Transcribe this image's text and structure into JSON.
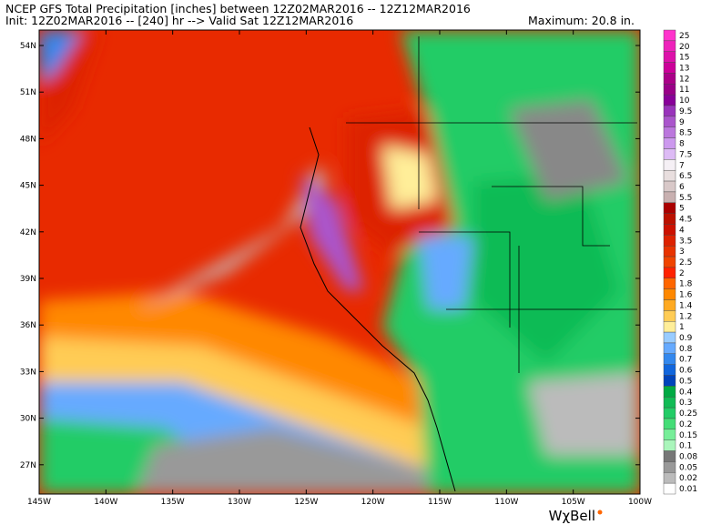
{
  "header": {
    "line1": "NCEP GFS Total Precipitation [inches] between 12Z02MAR2016 -- 12Z12MAR2016",
    "line2": "Init: 12Z02MAR2016 -- [240] hr --> Valid Sat 12Z12MAR2016",
    "maximum": "Maximum: 20.8 in."
  },
  "latitude_labels": [
    "54N",
    "51N",
    "48N",
    "45N",
    "42N",
    "39N",
    "36N",
    "33N",
    "30N",
    "27N"
  ],
  "longitude_labels": [
    "145W",
    "140W",
    "135W",
    "130W",
    "125W",
    "120W",
    "115W",
    "110W",
    "105W",
    "100W"
  ],
  "colorbar": [
    {
      "label": "25",
      "color": "#ff33cc"
    },
    {
      "label": "20",
      "color": "#ee22bb"
    },
    {
      "label": "15",
      "color": "#dd11aa"
    },
    {
      "label": "13",
      "color": "#cc0099"
    },
    {
      "label": "12",
      "color": "#aa0088"
    },
    {
      "label": "11",
      "color": "#990088"
    },
    {
      "label": "10",
      "color": "#880099"
    },
    {
      "label": "9.5",
      "color": "#9933bb"
    },
    {
      "label": "9",
      "color": "#aa55cc"
    },
    {
      "label": "8.5",
      "color": "#bb77dd"
    },
    {
      "label": "8",
      "color": "#cc99ee"
    },
    {
      "label": "7.5",
      "color": "#ddbbf5"
    },
    {
      "label": "7",
      "color": "#f5f0f5"
    },
    {
      "label": "6.5",
      "color": "#e8dede"
    },
    {
      "label": "6",
      "color": "#d8c8c8"
    },
    {
      "label": "5.5",
      "color": "#c8b0b0"
    },
    {
      "label": "5",
      "color": "#aa0000"
    },
    {
      "label": "4.5",
      "color": "#bb1100"
    },
    {
      "label": "4",
      "color": "#cc1100"
    },
    {
      "label": "3.5",
      "color": "#dd2200"
    },
    {
      "label": "3",
      "color": "#e83300"
    },
    {
      "label": "2.5",
      "color": "#f04400"
    },
    {
      "label": "2",
      "color": "#ff2200"
    },
    {
      "label": "1.8",
      "color": "#ff6600"
    },
    {
      "label": "1.6",
      "color": "#ff8800"
    },
    {
      "label": "1.4",
      "color": "#ffaa22"
    },
    {
      "label": "1.2",
      "color": "#ffcc55"
    },
    {
      "label": "1",
      "color": "#ffee99"
    },
    {
      "label": "0.9",
      "color": "#99ccff"
    },
    {
      "label": "0.8",
      "color": "#66aaff"
    },
    {
      "label": "0.7",
      "color": "#3388ee"
    },
    {
      "label": "0.6",
      "color": "#1166dd"
    },
    {
      "label": "0.5",
      "color": "#0044bb"
    },
    {
      "label": "0.4",
      "color": "#00aa44"
    },
    {
      "label": "0.3",
      "color": "#11bb55"
    },
    {
      "label": "0.25",
      "color": "#22cc66"
    },
    {
      "label": "0.2",
      "color": "#44dd77"
    },
    {
      "label": "0.15",
      "color": "#77ee99"
    },
    {
      "label": "0.1",
      "color": "#aaf5bb"
    },
    {
      "label": "0.08",
      "color": "#777777"
    },
    {
      "label": "0.05",
      "color": "#999999"
    },
    {
      "label": "0.02",
      "color": "#bbbbbb"
    },
    {
      "label": "0.01",
      "color": "#ffffff"
    }
  ],
  "logo": "WχBell"
}
